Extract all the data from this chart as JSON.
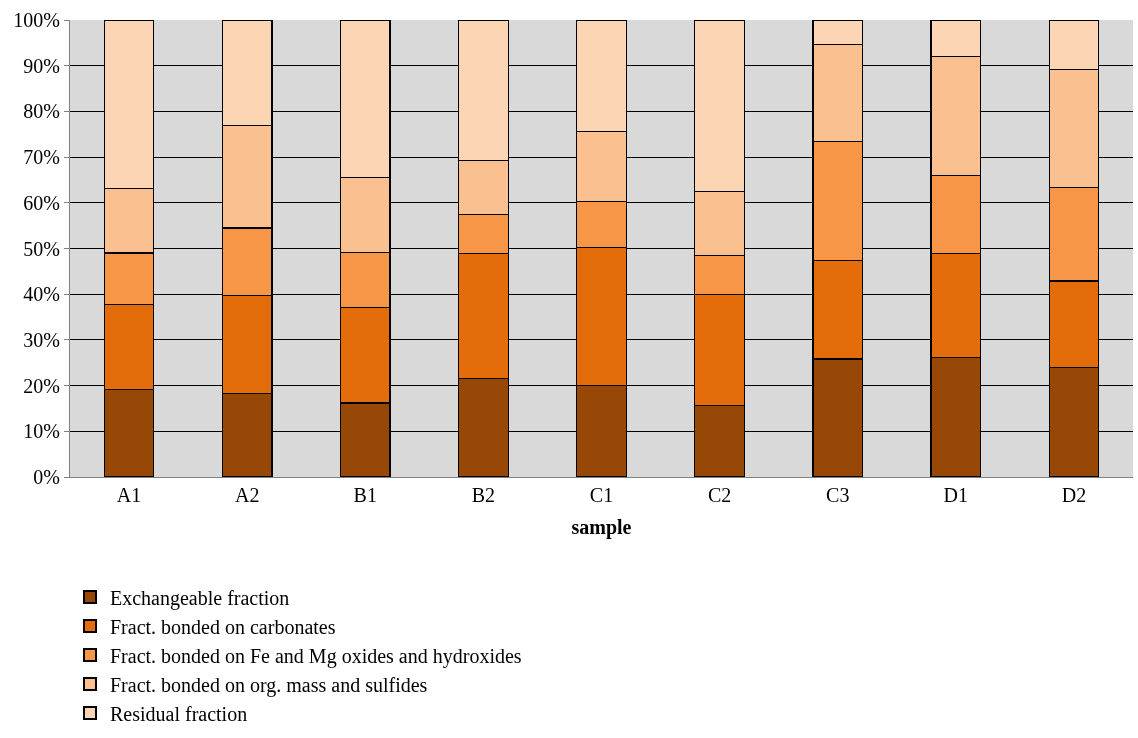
{
  "chart_data": {
    "type": "bar",
    "stacked": true,
    "xlabel": "sample",
    "categories": [
      "A1",
      "A2",
      "B1",
      "B2",
      "C1",
      "C2",
      "C3",
      "D1",
      "D2"
    ],
    "ylim": [
      0,
      100
    ],
    "yticks": [
      {
        "value": 0,
        "label": "0%"
      },
      {
        "value": 10,
        "label": "10%"
      },
      {
        "value": 20,
        "label": "20%"
      },
      {
        "value": 30,
        "label": "30%"
      },
      {
        "value": 40,
        "label": "40%"
      },
      {
        "value": 50,
        "label": "50%"
      },
      {
        "value": 60,
        "label": "60%"
      },
      {
        "value": 70,
        "label": "70%"
      },
      {
        "value": 80,
        "label": "80%"
      },
      {
        "value": 90,
        "label": "90%"
      },
      {
        "value": 100,
        "label": "100%"
      }
    ],
    "grid": "y",
    "legend": "bottom",
    "series": [
      {
        "name": "Exchangeable fraction",
        "color": "#974706",
        "values": [
          19.2,
          18.2,
          16.2,
          21.5,
          20.0,
          15.6,
          25.8,
          26.2,
          24.0
        ]
      },
      {
        "name": "Fract. bonded on carbonates",
        "color": "#e46c0a",
        "values": [
          18.6,
          21.6,
          20.9,
          27.4,
          30.3,
          24.3,
          21.5,
          22.7,
          18.9
        ]
      },
      {
        "name": "Fract. bonded on Fe and Mg oxides and hydroxides",
        "color": "#f79646",
        "values": [
          11.2,
          14.7,
          12.1,
          8.5,
          9.9,
          8.5,
          26.2,
          17.0,
          20.5
        ]
      },
      {
        "name": "Fract. bonded on org. mass and sulfides",
        "color": "#fac090",
        "values": [
          14.2,
          22.5,
          16.4,
          11.9,
          15.4,
          14.1,
          21.2,
          26.2,
          25.8
        ]
      },
      {
        "name": "Residual fraction",
        "color": "#fcd5b5",
        "values": [
          36.8,
          23.0,
          34.4,
          30.7,
          24.4,
          37.5,
          5.3,
          7.9,
          10.8
        ]
      }
    ]
  }
}
